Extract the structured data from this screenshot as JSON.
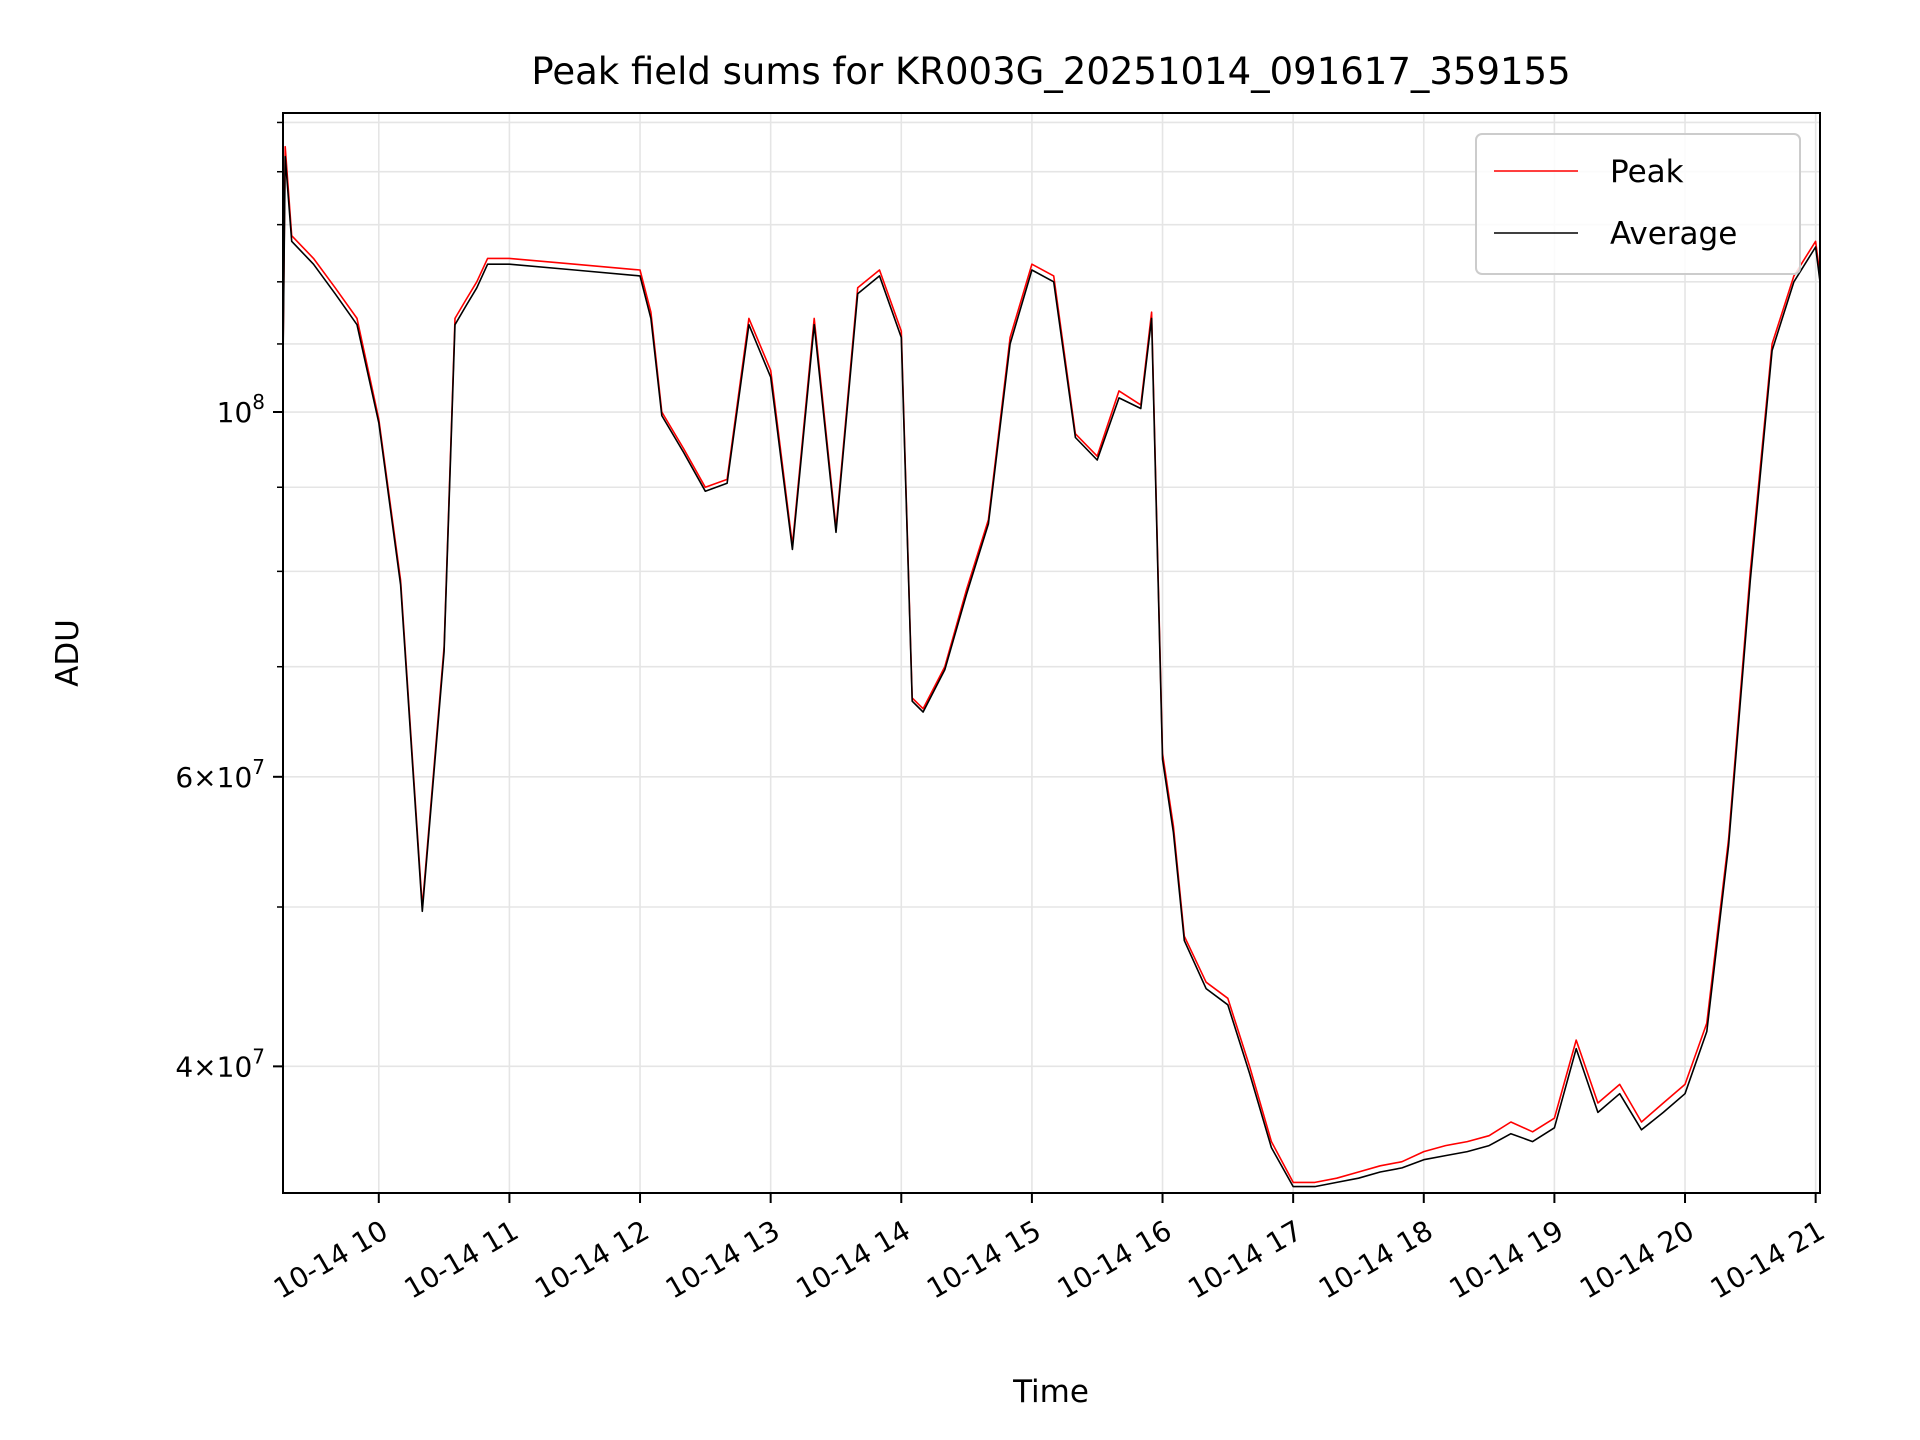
{
  "chart_data": {
    "type": "line",
    "title": "Peak field sums for KR003G_20251014_091617_359155",
    "xlabel": "Time",
    "ylabel": "ADU",
    "y_scale": "log",
    "xlim": [
      "2025-10-14 09:16",
      "2025-10-14 21:02"
    ],
    "ylim": [
      33500000,
      152000000
    ],
    "grid": true,
    "legend": {
      "position": "top-right",
      "entries": [
        "Peak",
        "Average"
      ]
    },
    "x_ticks": [
      "10-14 10",
      "10-14 11",
      "10-14 12",
      "10-14 13",
      "10-14 14",
      "10-14 15",
      "10-14 16",
      "10-14 17",
      "10-14 18",
      "10-14 19",
      "10-14 20",
      "10-14 21"
    ],
    "y_ticks": [
      {
        "value": 40000000,
        "label_base": "4×10",
        "label_exp": "7"
      },
      {
        "value": 60000000,
        "label_base": "6×10",
        "label_exp": "7"
      },
      {
        "value": 100000000,
        "label_base": "10",
        "label_exp": "8"
      }
    ],
    "series": [
      {
        "name": "Peak",
        "color": "#ff0000",
        "x": [
          "09:16",
          "09:17",
          "09:20",
          "09:30",
          "09:40",
          "09:50",
          "10:00",
          "10:10",
          "10:20",
          "10:30",
          "10:35",
          "10:40",
          "10:45",
          "10:50",
          "11:00",
          "11:30",
          "12:00",
          "12:05",
          "12:10",
          "12:20",
          "12:30",
          "12:40",
          "12:50",
          "13:00",
          "13:10",
          "13:20",
          "13:30",
          "13:40",
          "13:50",
          "14:00",
          "14:05",
          "14:10",
          "14:20",
          "14:30",
          "14:40",
          "14:50",
          "15:00",
          "15:10",
          "15:20",
          "15:30",
          "15:40",
          "15:50",
          "15:55",
          "16:00",
          "16:05",
          "16:10",
          "16:20",
          "16:30",
          "16:40",
          "16:50",
          "17:00",
          "17:10",
          "17:20",
          "17:30",
          "17:40",
          "17:50",
          "18:00",
          "18:10",
          "18:20",
          "18:30",
          "18:40",
          "18:50",
          "19:00",
          "19:10",
          "19:20",
          "19:30",
          "19:40",
          "19:50",
          "20:00",
          "20:10",
          "20:20",
          "20:30",
          "20:40",
          "20:50",
          "21:00",
          "21:02"
        ],
        "y": [
          108000000,
          145000000,
          128000000,
          124000000,
          119000000,
          114000000,
          99000000,
          79000000,
          50000000,
          72000000,
          114000000,
          117000000,
          120000000,
          124000000,
          124000000,
          123000000,
          122000000,
          115000000,
          100000000,
          95000000,
          90000000,
          91000000,
          114000000,
          106000000,
          83000000,
          114000000,
          85000000,
          119000000,
          122000000,
          112000000,
          67000000,
          66000000,
          70000000,
          78000000,
          86000000,
          111000000,
          123000000,
          121000000,
          97000000,
          94000000,
          103000000,
          101000000,
          115000000,
          62000000,
          56000000,
          48000000,
          45000000,
          44000000,
          40000000,
          36000000,
          34000000,
          34000000,
          34200000,
          34500000,
          34800000,
          35000000,
          35500000,
          35800000,
          36000000,
          36300000,
          37000000,
          36500000,
          37200000,
          41500000,
          38000000,
          39000000,
          37000000,
          38000000,
          39000000,
          42500000,
          55000000,
          80000000,
          110000000,
          121000000,
          127000000,
          121000000
        ]
      },
      {
        "name": "Average",
        "color": "#000000",
        "x": [
          "09:16",
          "09:17",
          "09:20",
          "09:30",
          "09:40",
          "09:50",
          "10:00",
          "10:10",
          "10:20",
          "10:30",
          "10:35",
          "10:40",
          "10:45",
          "10:50",
          "11:00",
          "11:30",
          "12:00",
          "12:05",
          "12:10",
          "12:20",
          "12:30",
          "12:40",
          "12:50",
          "13:00",
          "13:10",
          "13:20",
          "13:30",
          "13:40",
          "13:50",
          "14:00",
          "14:05",
          "14:10",
          "14:20",
          "14:30",
          "14:40",
          "14:50",
          "15:00",
          "15:10",
          "15:20",
          "15:30",
          "15:40",
          "15:50",
          "15:55",
          "16:00",
          "16:05",
          "16:10",
          "16:20",
          "16:30",
          "16:40",
          "16:50",
          "17:00",
          "17:10",
          "17:20",
          "17:30",
          "17:40",
          "17:50",
          "18:00",
          "18:10",
          "18:20",
          "18:30",
          "18:40",
          "18:50",
          "19:00",
          "19:10",
          "19:20",
          "19:30",
          "19:40",
          "19:50",
          "20:00",
          "20:10",
          "20:20",
          "20:30",
          "20:40",
          "20:50",
          "21:00",
          "21:02"
        ],
        "y": [
          107000000,
          143000000,
          127000000,
          123000000,
          118000000,
          113000000,
          98500000,
          78500000,
          49700000,
          71500000,
          113000000,
          116000000,
          119000000,
          123000000,
          123000000,
          122000000,
          121000000,
          114000000,
          99500000,
          94500000,
          89500000,
          90500000,
          113000000,
          105000000,
          82500000,
          113000000,
          84500000,
          118000000,
          121000000,
          111000000,
          66700000,
          65700000,
          69700000,
          77500000,
          85500000,
          110000000,
          122000000,
          120000000,
          96500000,
          93500000,
          102000000,
          100500000,
          114000000,
          61500000,
          55500000,
          47700000,
          44600000,
          43600000,
          39600000,
          35700000,
          33800000,
          33800000,
          34000000,
          34200000,
          34500000,
          34700000,
          35100000,
          35300000,
          35500000,
          35800000,
          36400000,
          36000000,
          36700000,
          41000000,
          37500000,
          38500000,
          36600000,
          37500000,
          38500000,
          42000000,
          54500000,
          79000000,
          109000000,
          120000000,
          126000000,
          120000000
        ]
      }
    ]
  }
}
